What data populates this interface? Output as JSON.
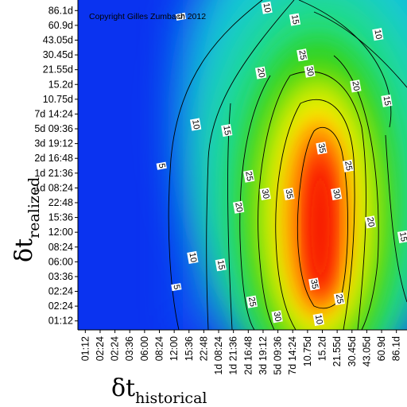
{
  "chart_data": {
    "type": "heatmap",
    "annotation": "Copyright Gilles Zumbach 2012",
    "xlabel": {
      "symbol": "δt",
      "subscript": "historical"
    },
    "ylabel": {
      "symbol": "δt",
      "subscript": "realized"
    },
    "x_ticks": [
      "01:12",
      "02:24",
      "02:24",
      "03:36",
      "06:00",
      "08:24",
      "12:00",
      "15:36",
      "22:48",
      "1d 08:24",
      "1d 21:36",
      "2d 16:48",
      "3d 19:12",
      "5d 09:36",
      "7d 14:24",
      "10.75d",
      "15.2d",
      "21.55d",
      "30.45d",
      "43.05d",
      "60.9d",
      "86.1d"
    ],
    "y_ticks": [
      "01:12",
      "02:24",
      "02:24",
      "03:36",
      "06:00",
      "08:24",
      "12:00",
      "15:36",
      "22:48",
      "1d 08:24",
      "1d 21:36",
      "2d 16:48",
      "3d 19:12",
      "5d 09:36",
      "7d 14:24",
      "10.75d",
      "15.2d",
      "21.55d",
      "30.45d",
      "43.05d",
      "60.9d",
      "86.1d"
    ],
    "contour_levels": [
      5,
      10,
      15,
      20,
      25,
      30,
      35
    ],
    "contour_labels": [
      {
        "text": "5",
        "x": 6.5,
        "y": 20.6
      },
      {
        "text": "5",
        "x": 5.2,
        "y": 10.5
      },
      {
        "text": "5",
        "x": 6.2,
        "y": 2.3
      },
      {
        "text": "10",
        "x": 12.3,
        "y": 21.2
      },
      {
        "text": "10",
        "x": 7.5,
        "y": 13.3
      },
      {
        "text": "10",
        "x": 7.3,
        "y": 4.3
      },
      {
        "text": "10",
        "x": 19.8,
        "y": 19.4
      },
      {
        "text": "10",
        "x": 15.8,
        "y": 0.1
      },
      {
        "text": "15",
        "x": 14.2,
        "y": 20.4
      },
      {
        "text": "15",
        "x": 9.6,
        "y": 12.9
      },
      {
        "text": "15",
        "x": 9.2,
        "y": 3.8
      },
      {
        "text": "15",
        "x": 20.4,
        "y": 14.9
      },
      {
        "text": "15",
        "x": 21.5,
        "y": 5.7
      },
      {
        "text": "20",
        "x": 11.9,
        "y": 16.8
      },
      {
        "text": "20",
        "x": 10.4,
        "y": 7.7
      },
      {
        "text": "20",
        "x": 18.3,
        "y": 15.9
      },
      {
        "text": "20",
        "x": 19.3,
        "y": 6.7
      },
      {
        "text": "25",
        "x": 14.7,
        "y": 18.0
      },
      {
        "text": "25",
        "x": 11.1,
        "y": 9.8
      },
      {
        "text": "25",
        "x": 11.3,
        "y": 1.3
      },
      {
        "text": "25",
        "x": 17.8,
        "y": 10.5
      },
      {
        "text": "25",
        "x": 17.2,
        "y": 1.5
      },
      {
        "text": "30",
        "x": 15.2,
        "y": 16.9
      },
      {
        "text": "30",
        "x": 12.2,
        "y": 8.6
      },
      {
        "text": "30",
        "x": 13.0,
        "y": 0.3
      },
      {
        "text": "30",
        "x": 17.0,
        "y": 8.6
      },
      {
        "text": "35",
        "x": 13.8,
        "y": 8.6
      },
      {
        "text": "35",
        "x": 16.0,
        "y": 11.7
      },
      {
        "text": "35",
        "x": 15.5,
        "y": 2.5
      }
    ]
  }
}
